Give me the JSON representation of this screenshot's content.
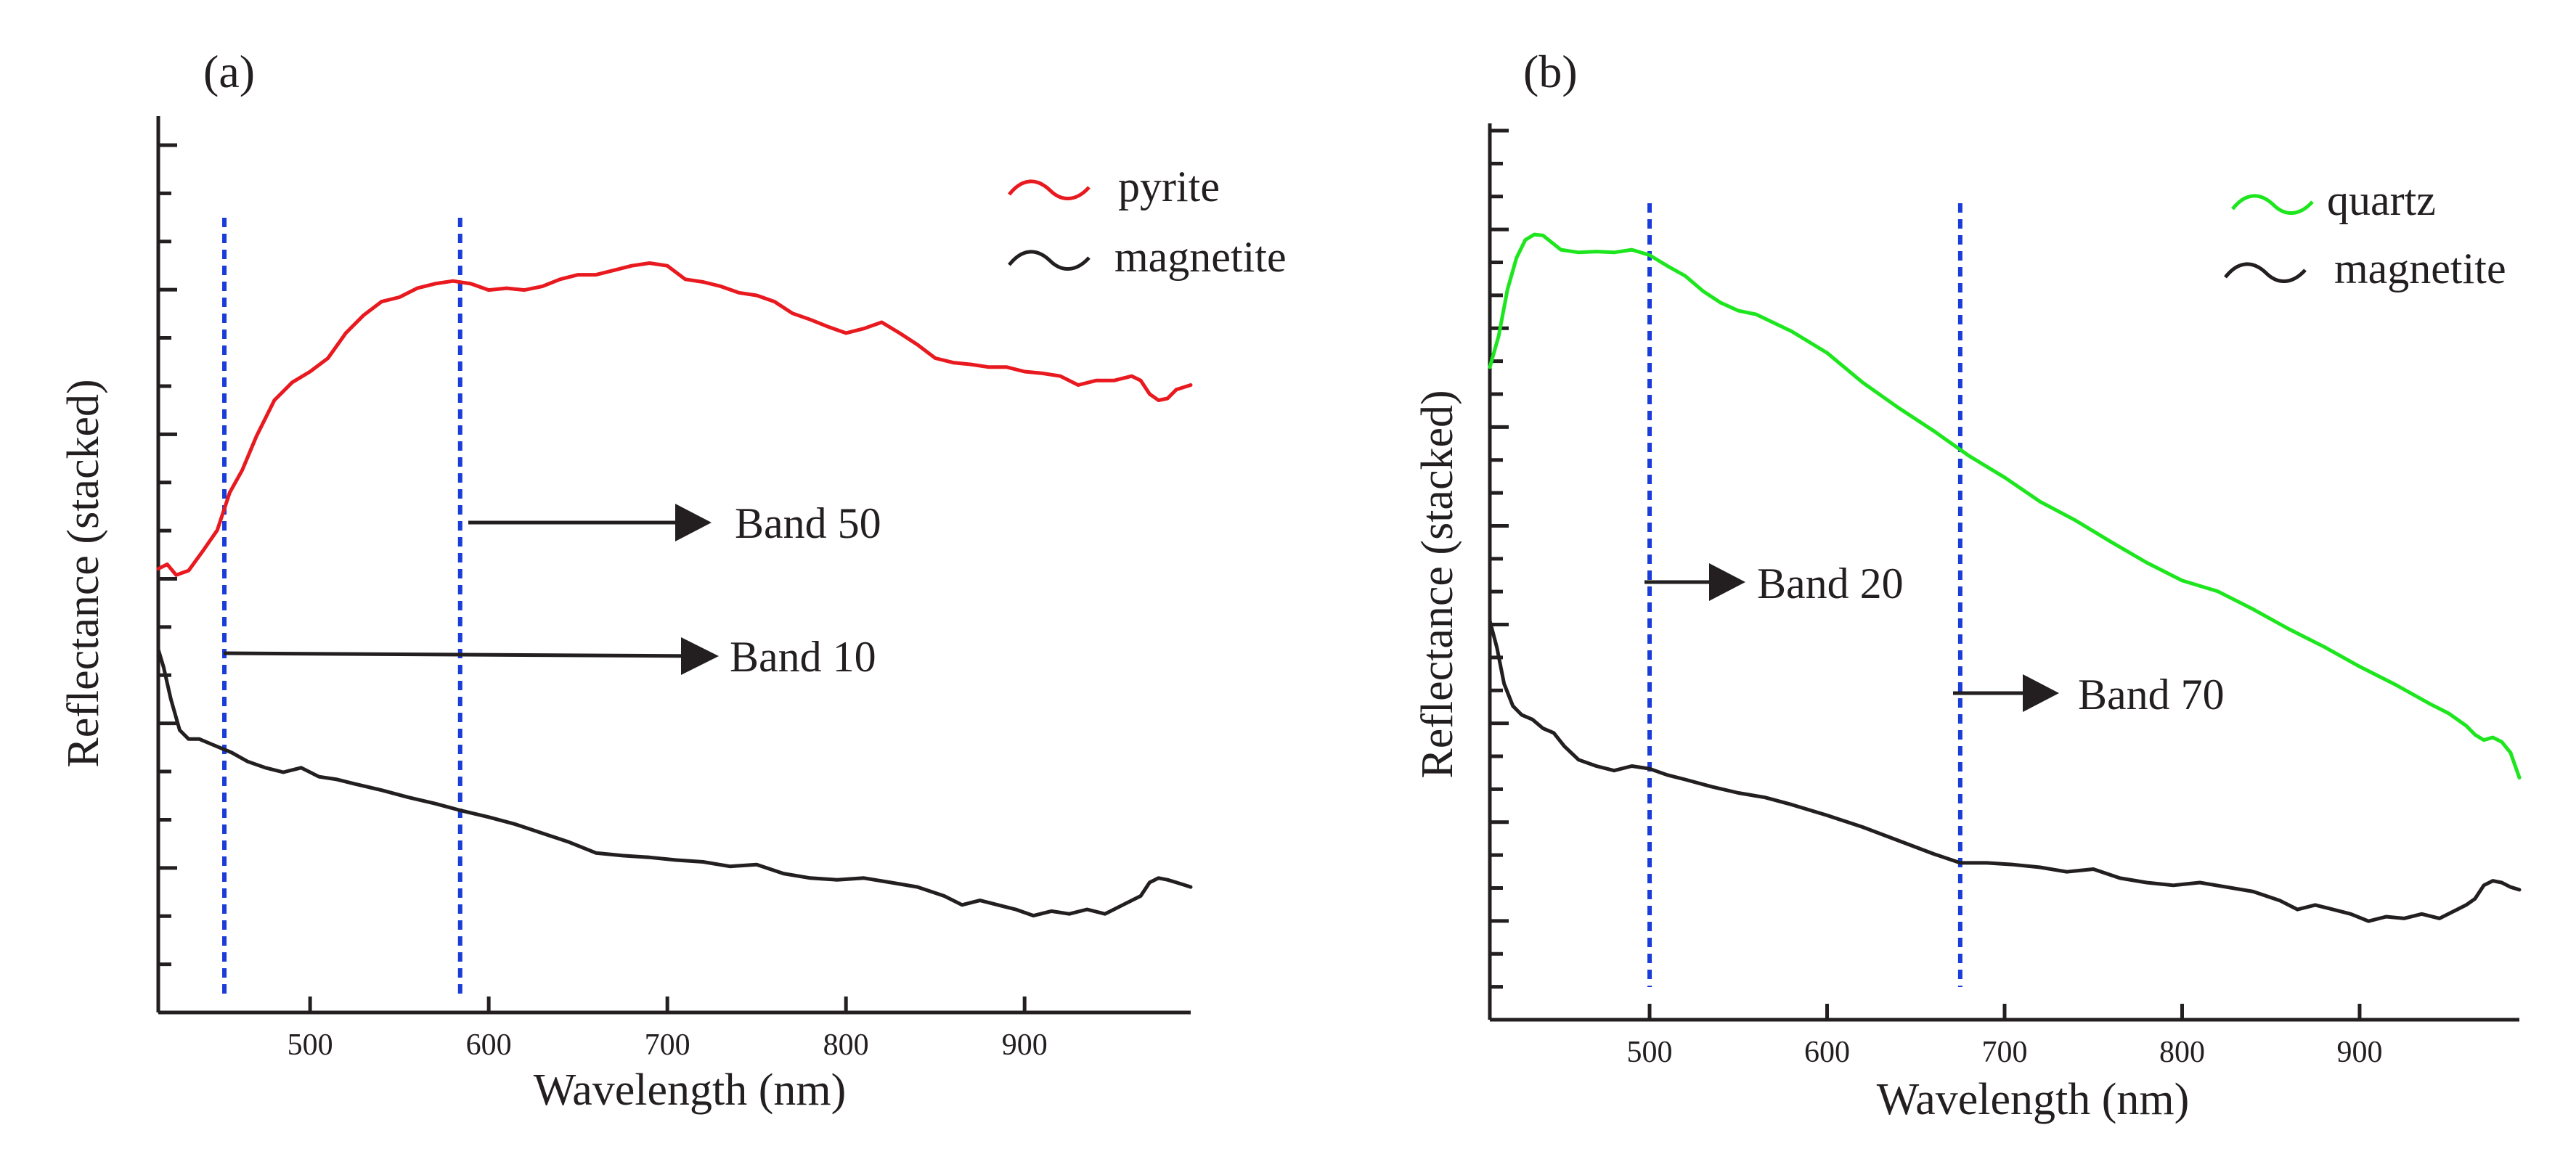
{
  "figure": {
    "panels": [
      {
        "label": "(a)",
        "xlabel": "Wavelength (nm)",
        "ylabel": "Reflectance (stacked)",
        "legend": [
          {
            "name": "pyrite",
            "color": "#e8191f"
          },
          {
            "name": "magnetite",
            "color": "#231f20"
          }
        ],
        "bands": [
          {
            "label": "Band 50",
            "wavelength": 584
          },
          {
            "label": "Band 10",
            "wavelength": 452
          }
        ]
      },
      {
        "label": "(b)",
        "xlabel": "Wavelength (nm)",
        "ylabel": "Reflectance (stacked)",
        "legend": [
          {
            "name": "quartz",
            "color": "#1ee61e"
          },
          {
            "name": "magnetite",
            "color": "#231f20"
          }
        ],
        "bands": [
          {
            "label": "Band 20",
            "wavelength": 500
          },
          {
            "label": "Band 70",
            "wavelength": 675
          }
        ]
      }
    ]
  },
  "chart_data": [
    {
      "type": "line",
      "title": "(a)",
      "xlabel": "Wavelength (nm)",
      "ylabel": "Reflectance (stacked)",
      "xlim": [
        415,
        993
      ],
      "ylim": [
        0,
        100
      ],
      "xticks": [
        500,
        600,
        700,
        800,
        900
      ],
      "yticks_minor_count": 19,
      "yticks_major_every": 3,
      "legend_position": "top-right",
      "band_color": "#1a3cd8",
      "series": [
        {
          "name": "pyrite",
          "color": "#e8191f",
          "x": [
            415,
            420,
            425,
            432,
            440,
            448,
            455,
            462,
            470,
            480,
            490,
            500,
            510,
            520,
            530,
            540,
            550,
            560,
            570,
            580,
            590,
            600,
            610,
            620,
            630,
            640,
            650,
            660,
            670,
            680,
            690,
            700,
            710,
            720,
            730,
            740,
            750,
            760,
            770,
            780,
            790,
            800,
            810,
            820,
            830,
            840,
            850,
            860,
            870,
            880,
            890,
            900,
            910,
            920,
            930,
            940,
            950,
            960,
            965,
            970,
            975,
            980,
            985,
            993
          ],
          "values": [
            49.5,
            50.0,
            48.8,
            49.3,
            51.5,
            53.8,
            58.0,
            60.5,
            64.3,
            68.3,
            70.3,
            71.5,
            73.0,
            75.8,
            77.8,
            79.3,
            79.8,
            80.8,
            81.3,
            81.6,
            81.3,
            80.6,
            80.8,
            80.6,
            81.0,
            81.8,
            82.3,
            82.3,
            82.8,
            83.3,
            83.6,
            83.3,
            81.8,
            81.5,
            81.0,
            80.3,
            80.0,
            79.3,
            78.0,
            77.3,
            76.5,
            75.8,
            76.3,
            77.0,
            75.8,
            74.5,
            73.0,
            72.5,
            72.3,
            72.0,
            72.0,
            71.5,
            71.3,
            71.0,
            70.0,
            70.5,
            70.5,
            71.0,
            70.5,
            69.0,
            68.3,
            68.5,
            69.5,
            70.0
          ]
        },
        {
          "name": "magnetite",
          "color": "#231f20",
          "x": [
            415,
            418,
            422,
            427,
            432,
            438,
            444,
            450,
            456,
            465,
            475,
            485,
            495,
            505,
            515,
            525,
            540,
            555,
            570,
            585,
            600,
            615,
            630,
            645,
            660,
            675,
            690,
            705,
            720,
            735,
            750,
            765,
            780,
            795,
            810,
            825,
            840,
            855,
            865,
            875,
            885,
            895,
            905,
            915,
            925,
            935,
            945,
            955,
            960,
            965,
            970,
            975,
            980,
            985,
            993
          ],
          "values": [
            40.5,
            38.5,
            35.0,
            31.5,
            30.5,
            30.5,
            30.0,
            29.5,
            29.0,
            28.0,
            27.3,
            26.8,
            27.3,
            26.3,
            26.0,
            25.5,
            24.8,
            24.0,
            23.3,
            22.5,
            21.8,
            21.0,
            20.0,
            19.0,
            17.8,
            17.5,
            17.3,
            17.0,
            16.8,
            16.3,
            16.5,
            15.5,
            15.0,
            14.8,
            15.0,
            14.5,
            14.0,
            13.0,
            12.0,
            12.5,
            12.0,
            11.5,
            10.8,
            11.3,
            11.0,
            11.5,
            11.0,
            12.0,
            12.5,
            13.0,
            14.5,
            15.0,
            14.8,
            14.5,
            14.0
          ]
        }
      ],
      "annotations": [
        {
          "text": "Band 50",
          "wavelength": 584
        },
        {
          "text": "Band 10",
          "wavelength": 452
        }
      ]
    },
    {
      "type": "line",
      "title": "(b)",
      "xlabel": "Wavelength (nm)",
      "ylabel": "Reflectance (stacked)",
      "xlim": [
        410,
        990
      ],
      "ylim": [
        0,
        100
      ],
      "xticks": [
        500,
        600,
        700,
        800,
        900
      ],
      "yticks_minor_count": 28,
      "yticks_major_every": 3,
      "legend_position": "top-right",
      "band_color": "#1a3cd8",
      "series": [
        {
          "name": "quartz",
          "color": "#1ee61e",
          "x": [
            410,
            415,
            420,
            425,
            430,
            435,
            440,
            445,
            450,
            460,
            470,
            480,
            490,
            500,
            510,
            520,
            530,
            540,
            550,
            560,
            580,
            600,
            620,
            640,
            660,
            680,
            700,
            720,
            740,
            760,
            780,
            800,
            820,
            840,
            860,
            880,
            900,
            920,
            940,
            950,
            960,
            965,
            970,
            975,
            980,
            985,
            990
          ],
          "values": [
            72.8,
            76.3,
            81.5,
            85.0,
            87.0,
            87.6,
            87.5,
            86.7,
            85.9,
            85.6,
            85.7,
            85.6,
            85.9,
            85.3,
            84.1,
            83.0,
            81.3,
            80.0,
            79.1,
            78.7,
            76.8,
            74.4,
            71.1,
            68.3,
            65.7,
            62.9,
            60.5,
            57.8,
            55.7,
            53.3,
            51.0,
            49.0,
            47.8,
            45.8,
            43.6,
            41.6,
            39.4,
            37.4,
            35.2,
            34.2,
            32.8,
            31.8,
            31.2,
            31.5,
            31.0,
            29.8,
            27.0
          ]
        },
        {
          "name": "magnetite",
          "color": "#231f20",
          "x": [
            410,
            414,
            418,
            423,
            428,
            434,
            440,
            446,
            452,
            460,
            470,
            480,
            490,
            500,
            510,
            520,
            535,
            550,
            565,
            580,
            600,
            620,
            640,
            660,
            675,
            690,
            705,
            720,
            735,
            750,
            765,
            780,
            795,
            810,
            825,
            840,
            855,
            865,
            875,
            885,
            895,
            905,
            915,
            925,
            935,
            945,
            955,
            960,
            965,
            970,
            975,
            980,
            985,
            990
          ],
          "values": [
            44.5,
            41.5,
            37.5,
            35.0,
            34.0,
            33.5,
            32.5,
            32.0,
            30.5,
            29.0,
            28.3,
            27.8,
            28.3,
            28.0,
            27.3,
            26.8,
            26.0,
            25.3,
            24.8,
            24.0,
            22.8,
            21.5,
            20.0,
            18.5,
            17.5,
            17.5,
            17.3,
            17.0,
            16.5,
            16.8,
            15.8,
            15.3,
            15.0,
            15.3,
            14.8,
            14.3,
            13.3,
            12.3,
            12.8,
            12.3,
            11.8,
            11.0,
            11.5,
            11.3,
            11.8,
            11.3,
            12.3,
            12.8,
            13.5,
            15.0,
            15.5,
            15.3,
            14.8,
            14.5
          ]
        }
      ],
      "annotations": [
        {
          "text": "Band 20",
          "wavelength": 500
        },
        {
          "text": "Band 70",
          "wavelength": 675
        }
      ]
    }
  ]
}
